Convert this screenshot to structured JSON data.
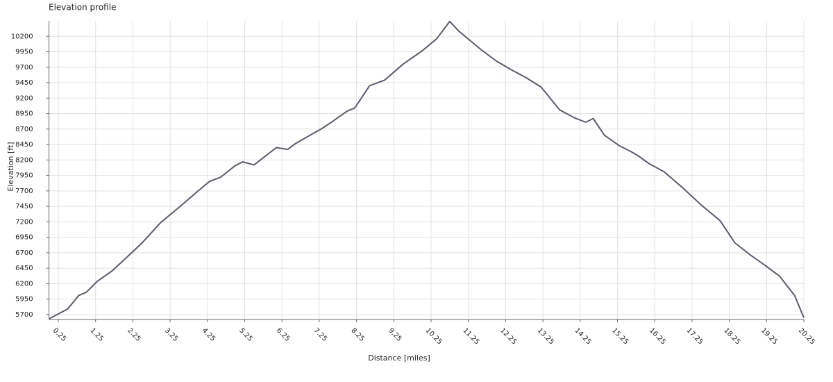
{
  "chart_data": {
    "type": "line",
    "title": "Elevation profile",
    "x_label": "Distance [miles]",
    "y_label": "Elevation [ft]",
    "x": [
      0,
      0.5,
      0.8,
      1.0,
      1.3,
      1.7,
      2.2,
      2.5,
      3.0,
      3.5,
      4.0,
      4.3,
      4.6,
      5.0,
      5.2,
      5.5,
      5.8,
      6.1,
      6.4,
      6.6,
      7.0,
      7.3,
      7.6,
      8.0,
      8.2,
      8.6,
      9.0,
      9.5,
      10.0,
      10.4,
      10.75,
      11.0,
      11.6,
      12.0,
      12.4,
      12.8,
      13.2,
      13.7,
      14.1,
      14.4,
      14.6,
      14.9,
      15.3,
      15.6,
      15.8,
      16.1,
      16.5,
      17.0,
      17.5,
      18.0,
      18.4,
      18.8,
      19.2,
      19.6,
      20.0,
      20.25
    ],
    "series": [
      {
        "name": "Elevation",
        "color": "#5a5a6e",
        "values": [
          5630,
          5790,
          6010,
          6060,
          6240,
          6410,
          6690,
          6860,
          7190,
          7440,
          7700,
          7850,
          7920,
          8110,
          8170,
          8120,
          8260,
          8400,
          8370,
          8460,
          8600,
          8700,
          8820,
          8990,
          9040,
          9400,
          9490,
          9750,
          9960,
          10160,
          10440,
          10280,
          9980,
          9800,
          9660,
          9530,
          9380,
          9010,
          8880,
          8810,
          8870,
          8600,
          8430,
          8340,
          8270,
          8140,
          8010,
          7750,
          7470,
          7220,
          6860,
          6670,
          6500,
          6320,
          6010,
          5650
        ]
      }
    ],
    "xlim": [
      0,
      20.25
    ],
    "ylim": [
      5620,
      10450
    ],
    "xticks": [
      0.25,
      1.25,
      2.25,
      3.25,
      4.25,
      5.25,
      6.25,
      7.25,
      8.25,
      9.25,
      10.25,
      11.25,
      12.25,
      13.25,
      14.25,
      15.25,
      16.25,
      17.25,
      18.25,
      19.25,
      20.25
    ],
    "yticks": [
      5700,
      5950,
      6200,
      6450,
      6700,
      6950,
      7200,
      7450,
      7700,
      7950,
      8200,
      8450,
      8700,
      8950,
      9200,
      9450,
      9700,
      9950,
      10200
    ],
    "grid": true
  }
}
